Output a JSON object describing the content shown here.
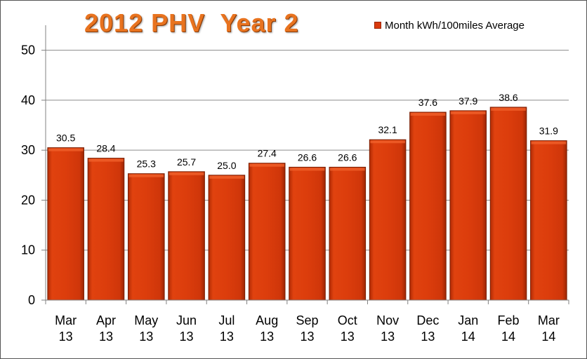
{
  "chart_data": {
    "type": "bar",
    "title": "2012 PHV  Year 2",
    "xlabel": "",
    "ylabel": "",
    "ylim": [
      0,
      55
    ],
    "yticks": [
      0,
      10,
      20,
      30,
      40,
      50
    ],
    "grid": true,
    "legend_position": "top-right",
    "categories": [
      [
        "Mar",
        "13"
      ],
      [
        "Apr",
        "13"
      ],
      [
        "May",
        "13"
      ],
      [
        "Jun",
        "13"
      ],
      [
        "Jul",
        "13"
      ],
      [
        "Aug",
        "13"
      ],
      [
        "Sep",
        "13"
      ],
      [
        "Oct",
        "13"
      ],
      [
        "Nov",
        "13"
      ],
      [
        "Dec",
        "13"
      ],
      [
        "Jan",
        "14"
      ],
      [
        "Feb",
        "14"
      ],
      [
        "Mar",
        "14"
      ]
    ],
    "series": [
      {
        "name": "Month kWh/100miles  Average",
        "color": "#d93a0d",
        "values": [
          30.5,
          28.4,
          25.3,
          25.7,
          25.0,
          27.4,
          26.6,
          26.6,
          32.1,
          37.6,
          37.9,
          38.6,
          31.9
        ],
        "data_labels": [
          "30.5",
          "28.4",
          "25.3",
          "25.7",
          "25.0",
          "27.4",
          "26.6",
          "26.6",
          "32.1",
          "37.6",
          "37.9",
          "38.6",
          "31.9"
        ]
      }
    ]
  }
}
